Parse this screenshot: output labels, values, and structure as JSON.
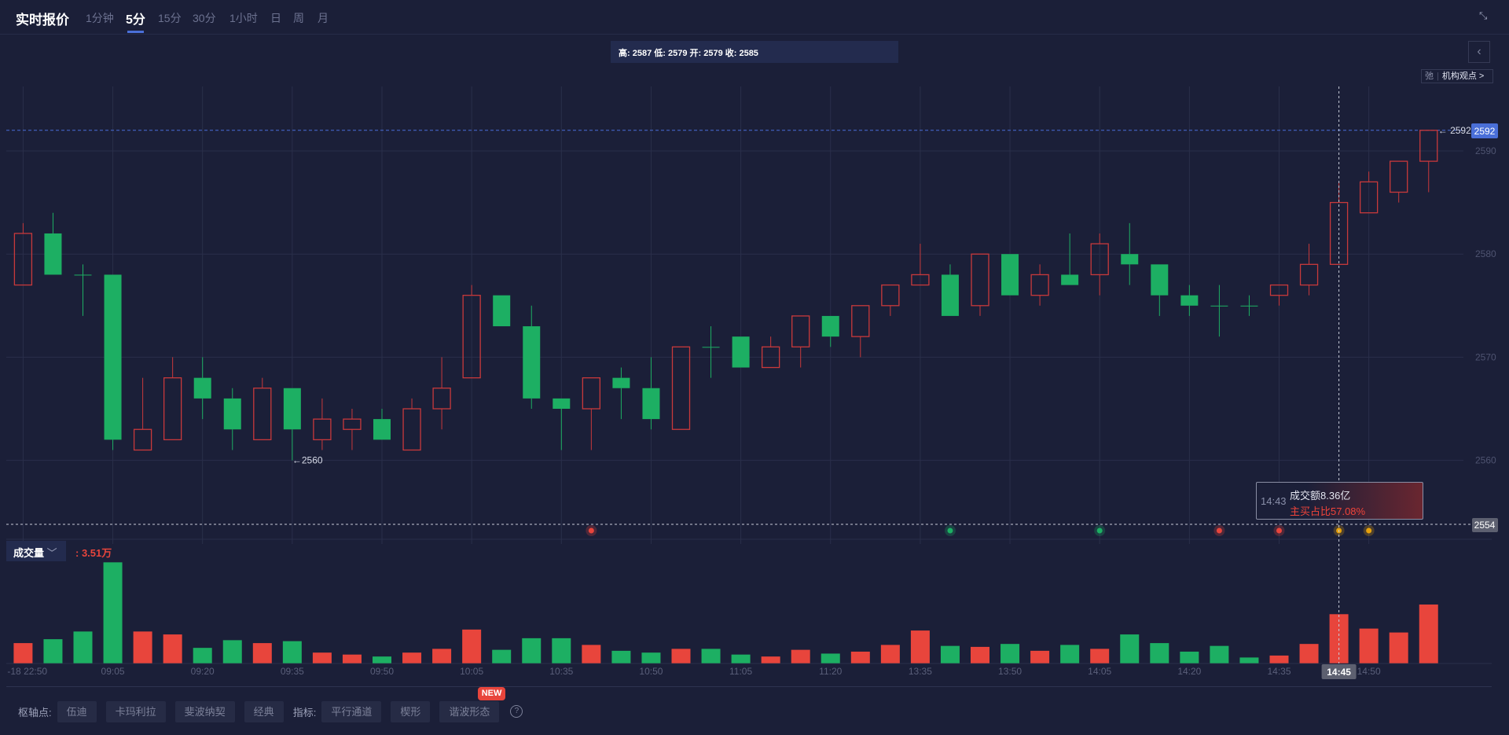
{
  "header": {
    "title": "实时报价",
    "tabs": [
      "1分钟",
      "5分",
      "15分",
      "30分",
      "1小时",
      "日",
      "周",
      "月"
    ],
    "active_tab": "5分"
  },
  "ohlc_info": "高: 2587 低: 2579 开: 2579 收: 2585",
  "chip": {
    "icon_text": "弛",
    "label": "机构观点 >"
  },
  "volume_panel": {
    "selector": "成交量",
    "value": ": 3.51万"
  },
  "tooltip": {
    "time": "14:43",
    "amount": "成交额8.36亿",
    "ratio": "主买占比57.08%"
  },
  "crosshair": {
    "time": "14:45",
    "price": "2554"
  },
  "last_price": "2592",
  "marks": {
    "high": "2592",
    "low": "2560"
  },
  "toolbar": {
    "pivot_label": "枢轴点:",
    "pivot_buttons": [
      "伍迪",
      "卡玛利拉",
      "斐波纳契",
      "经典"
    ],
    "indicator_label": "指标:",
    "indicator_buttons": [
      "平行通道",
      "楔形",
      "谐波形态"
    ],
    "new_badge": "NEW",
    "help": "?"
  },
  "colors": {
    "up": "#e8453c",
    "down": "#1daf63",
    "accent": "#4a6fd8"
  },
  "chart_data": {
    "type": "candlestick",
    "y_ticks": [
      2560,
      2570,
      2580,
      2590
    ],
    "x_labels": [
      {
        "i": 0,
        "t": "-18 22:50"
      },
      {
        "i": 3,
        "t": "09:05"
      },
      {
        "i": 6,
        "t": "09:20"
      },
      {
        "i": 9,
        "t": "09:35"
      },
      {
        "i": 12,
        "t": "09:50"
      },
      {
        "i": 15,
        "t": "10:05"
      },
      {
        "i": 18,
        "t": "10:35"
      },
      {
        "i": 21,
        "t": "10:50"
      },
      {
        "i": 24,
        "t": "11:05"
      },
      {
        "i": 27,
        "t": "11:20"
      },
      {
        "i": 30,
        "t": "13:35"
      },
      {
        "i": 33,
        "t": "13:50"
      },
      {
        "i": 36,
        "t": "14:05"
      },
      {
        "i": 39,
        "t": "14:20"
      },
      {
        "i": 42,
        "t": "14:35"
      },
      {
        "i": 45,
        "t": "14:50"
      }
    ],
    "ohlc": [
      [
        2577,
        2583,
        2577,
        2582
      ],
      [
        2582,
        2584,
        2578,
        2578
      ],
      [
        2578,
        2579,
        2574,
        2578
      ],
      [
        2578,
        2578,
        2561,
        2562
      ],
      [
        2561,
        2568,
        2561,
        2563
      ],
      [
        2562,
        2570,
        2562,
        2568
      ],
      [
        2568,
        2570,
        2564,
        2566
      ],
      [
        2566,
        2567,
        2561,
        2563
      ],
      [
        2562,
        2568,
        2562,
        2567
      ],
      [
        2567,
        2567,
        2560,
        2563
      ],
      [
        2562,
        2566,
        2561,
        2564
      ],
      [
        2563,
        2565,
        2561,
        2564
      ],
      [
        2564,
        2565,
        2562,
        2562
      ],
      [
        2561,
        2566,
        2561,
        2565
      ],
      [
        2565,
        2570,
        2563,
        2567
      ],
      [
        2568,
        2577,
        2568,
        2576
      ],
      [
        2576,
        2576,
        2573,
        2573
      ],
      [
        2573,
        2575,
        2565,
        2566
      ],
      [
        2566,
        2566,
        2561,
        2565
      ],
      [
        2565,
        2568,
        2561,
        2568
      ],
      [
        2568,
        2569,
        2564,
        2567
      ],
      [
        2567,
        2570,
        2563,
        2564
      ],
      [
        2563,
        2571,
        2563,
        2571
      ],
      [
        2571,
        2573,
        2568,
        2571
      ],
      [
        2572,
        2572,
        2569,
        2569
      ],
      [
        2569,
        2572,
        2569,
        2571
      ],
      [
        2571,
        2574,
        2569,
        2574
      ],
      [
        2574,
        2574,
        2571,
        2572
      ],
      [
        2572,
        2575,
        2570,
        2575
      ],
      [
        2575,
        2577,
        2574,
        2577
      ],
      [
        2577,
        2581,
        2577,
        2578
      ],
      [
        2578,
        2579,
        2574,
        2574
      ],
      [
        2575,
        2580,
        2574,
        2580
      ],
      [
        2580,
        2580,
        2576,
        2576
      ],
      [
        2576,
        2579,
        2575,
        2578
      ],
      [
        2578,
        2582,
        2577,
        2577
      ],
      [
        2578,
        2582,
        2576,
        2581
      ],
      [
        2580,
        2583,
        2577,
        2579
      ],
      [
        2579,
        2579,
        2574,
        2576
      ],
      [
        2576,
        2577,
        2574,
        2575
      ],
      [
        2575,
        2577,
        2572,
        2575
      ],
      [
        2575,
        2576,
        2574,
        2575
      ],
      [
        2576,
        2577,
        2575,
        2577
      ],
      [
        2577,
        2581,
        2576,
        2579
      ],
      [
        2579,
        2587,
        2579,
        2585
      ],
      [
        2584,
        2588,
        2584,
        2587
      ],
      [
        2586,
        2589,
        2585,
        2589
      ],
      [
        2589,
        2592,
        2586,
        2592
      ]
    ],
    "volume": [
      1.44,
      1.72,
      2.27,
      7.22,
      2.27,
      2.06,
      1.1,
      1.65,
      1.44,
      1.58,
      0.76,
      0.62,
      0.48,
      0.76,
      1.03,
      2.41,
      0.96,
      1.79,
      1.79,
      1.31,
      0.89,
      0.76,
      1.03,
      1.03,
      0.62,
      0.48,
      0.96,
      0.69,
      0.83,
      1.31,
      2.34,
      1.24,
      1.17,
      1.38,
      0.89,
      1.31,
      1.03,
      2.06,
      1.44,
      0.83,
      1.24,
      0.41,
      0.55,
      1.38,
      3.51,
      2.48,
      2.2,
      4.2
    ],
    "volume_up": [
      true,
      false,
      false,
      false,
      true,
      true,
      false,
      false,
      true,
      false,
      true,
      true,
      false,
      true,
      true,
      true,
      false,
      false,
      false,
      true,
      false,
      false,
      true,
      false,
      false,
      true,
      true,
      false,
      true,
      true,
      true,
      false,
      true,
      false,
      true,
      false,
      true,
      false,
      false,
      false,
      false,
      false,
      true,
      true,
      true,
      true,
      true,
      true
    ],
    "signals": [
      {
        "i": 19,
        "kind": "red"
      },
      {
        "i": 31,
        "kind": "green"
      },
      {
        "i": 36,
        "kind": "green"
      },
      {
        "i": 40,
        "kind": "red"
      },
      {
        "i": 42,
        "kind": "red"
      },
      {
        "i": 44,
        "kind": "orange"
      },
      {
        "i": 45,
        "kind": "orange"
      }
    ]
  }
}
